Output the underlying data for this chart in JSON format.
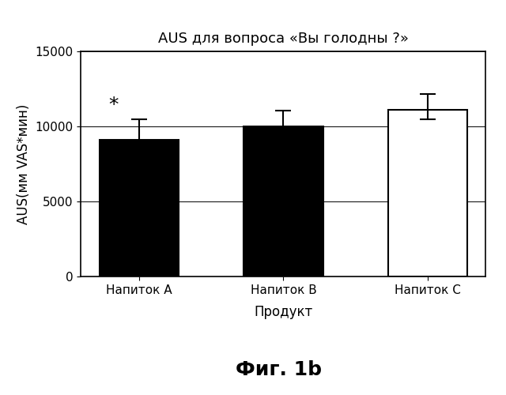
{
  "title": "AUS для вопроса «Вы голодны ?»",
  "xlabel": "Продукт",
  "ylabel": "AUS(мм VAS*мин)",
  "categories": [
    "Напиток A",
    "Напиток B",
    "Напиток C"
  ],
  "values": [
    9100,
    10000,
    11100
  ],
  "error_upper": [
    1400,
    1050,
    1050
  ],
  "error_lower": [
    1000,
    950,
    600
  ],
  "hatch_A": "----------",
  "hatch_B": "----------",
  "hatch_C": "",
  "bar_colors": [
    "white",
    "white",
    "white"
  ],
  "bar_edgecolors": [
    "black",
    "black",
    "black"
  ],
  "ylim": [
    0,
    15000
  ],
  "yticks": [
    0,
    5000,
    10000,
    15000
  ],
  "asterisk_bar": 0,
  "asterisk_text": "*",
  "figure_caption": "Фиг. 1b",
  "title_fontsize": 13,
  "label_fontsize": 12,
  "tick_fontsize": 11,
  "caption_fontsize": 18,
  "bar_width": 0.55
}
